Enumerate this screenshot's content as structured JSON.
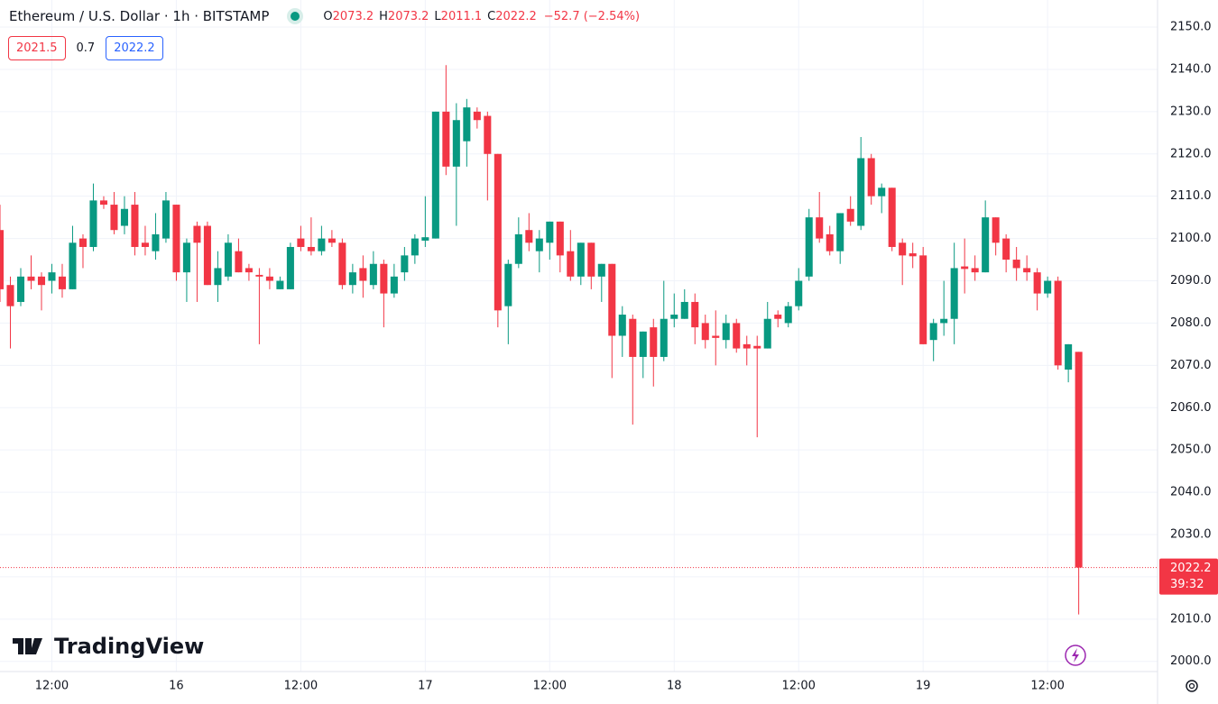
{
  "chart_data": {
    "type": "candlestick",
    "title": "Ethereum / U.S. Dollar · 1h · BITSTAMP",
    "header": {
      "o_label": "O",
      "open": 2073.2,
      "h_label": "H",
      "high": 2073.2,
      "l_label": "L",
      "low": 2011.1,
      "c_label": "C",
      "close": 2022.2,
      "change": "−52.7 (−2.54%)"
    },
    "bid": 2021.5,
    "spread": 0.7,
    "ask": 2022.2,
    "last_price": 2022.2,
    "countdown": "39:32",
    "watermark": "TradingView",
    "up_color": "#089981",
    "down_color": "#f23645",
    "grid": true,
    "x": [
      7,
      8,
      9,
      10,
      11,
      12,
      13,
      14,
      15,
      16,
      17,
      18,
      19,
      20,
      21,
      22,
      23,
      24,
      25,
      26,
      27,
      28,
      29,
      30,
      31,
      32,
      33,
      34,
      35,
      36,
      37,
      38,
      39,
      40,
      41,
      42,
      43,
      44,
      45,
      46,
      47,
      48,
      49,
      50,
      51,
      52,
      53,
      54,
      55,
      56,
      57,
      58,
      59,
      60,
      61,
      62,
      63,
      64,
      65,
      66,
      67,
      68,
      69,
      70,
      71,
      72,
      73,
      74,
      75,
      76,
      77,
      78,
      79,
      80,
      81,
      82,
      83,
      84,
      85,
      86,
      87,
      88,
      89,
      90,
      91,
      92,
      93,
      94,
      95,
      96,
      97,
      98,
      99,
      100,
      101,
      102,
      103,
      104,
      105,
      106,
      107,
      108,
      109,
      110,
      111
    ],
    "open": [
      2102,
      2089,
      2085,
      2091,
      2091,
      2090,
      2091,
      2088,
      2100,
      2098,
      2109,
      2108,
      2103,
      2108,
      2099,
      2097,
      2100,
      2108,
      2092,
      2103,
      2103,
      2089,
      2091,
      2097,
      2093,
      2091.4,
      2091,
      2088,
      2088,
      2100,
      2098,
      2097,
      2100,
      2099,
      2089,
      2093,
      2089,
      2094,
      2087,
      2092,
      2096,
      2099.5,
      2100,
      2130,
      2117,
      2123,
      2130,
      2129,
      2120,
      2084,
      2094,
      2102,
      2097,
      2099,
      2104,
      2097,
      2091,
      2099,
      2091,
      2094,
      2077,
      2081,
      2072,
      2079,
      2072,
      2081,
      2081,
      2085,
      2080,
      2077,
      2076,
      2080,
      2075,
      2074.6,
      2074,
      2082,
      2080,
      2084,
      2091,
      2105,
      2101,
      2097,
      2107,
      2103,
      2119,
      2110,
      2112,
      2099,
      2096.5,
      2096,
      2076,
      2080,
      2081,
      2093.4,
      2093,
      2092,
      2105,
      2100,
      2095,
      2093,
      2092,
      2087,
      2090,
      2069,
      2073.2
    ],
    "high": [
      2108,
      2091,
      2093,
      2096,
      2092,
      2094,
      2094,
      2103,
      2101,
      2113,
      2110,
      2111,
      2110,
      2111,
      2103,
      2106,
      2111,
      2108,
      2100,
      2104,
      2104,
      2097,
      2101,
      2100,
      2094,
      2093,
      2093,
      2091,
      2099,
      2103,
      2105,
      2103,
      2102,
      2100,
      2094,
      2096,
      2097,
      2095,
      2094,
      2098,
      2101,
      2110,
      2130,
      2141,
      2132,
      2133,
      2131,
      2130,
      2120,
      2095,
      2105,
      2106,
      2102,
      2104,
      2104,
      2102,
      2099,
      2099,
      2094,
      2094,
      2084,
      2082,
      2078,
      2081,
      2090,
      2087,
      2088,
      2087,
      2082,
      2083,
      2082,
      2081,
      2077,
      2077,
      2085,
      2083,
      2085,
      2093,
      2107,
      2111,
      2103,
      2106,
      2110,
      2124,
      2120,
      2113,
      2112,
      2100,
      2099,
      2098,
      2081,
      2090,
      2099,
      2100,
      2096,
      2109,
      2105,
      2101,
      2098,
      2096,
      2093,
      2091,
      2091,
      2075,
      2073.2
    ],
    "low": [
      2085,
      2074,
      2084,
      2088,
      2083,
      2087,
      2086,
      2088,
      2093,
      2097,
      2107,
      2101,
      2101,
      2096,
      2096,
      2095,
      2099,
      2090,
      2085,
      2085,
      2089,
      2085,
      2090,
      2092,
      2090,
      2075,
      2088,
      2088,
      2088,
      2097,
      2096,
      2096,
      2098,
      2088,
      2087,
      2086,
      2088,
      2079,
      2086,
      2090,
      2094,
      2098,
      2100,
      2115,
      2103,
      2117,
      2126,
      2109,
      2079,
      2075,
      2093,
      2097,
      2092,
      2095,
      2092,
      2090,
      2089,
      2088,
      2085,
      2067,
      2072,
      2056,
      2067,
      2065,
      2071,
      2079,
      2081,
      2075,
      2074,
      2070,
      2074,
      2073,
      2070,
      2053,
      2074,
      2079,
      2079,
      2083,
      2090,
      2099,
      2096,
      2094,
      2103,
      2102,
      2108,
      2106,
      2097,
      2089,
      2093,
      2075,
      2071,
      2077,
      2075,
      2087,
      2090,
      2092,
      2096,
      2092,
      2090,
      2090,
      2083,
      2086,
      2069,
      2066,
      2011.1
    ],
    "close": [
      2088,
      2084,
      2091,
      2090,
      2089,
      2092,
      2088,
      2099,
      2098,
      2109,
      2108,
      2102,
      2107,
      2098,
      2098,
      2101,
      2109,
      2092,
      2099,
      2099,
      2089,
      2093,
      2099,
      2092,
      2092,
      2091,
      2090,
      2090,
      2098,
      2098,
      2097,
      2100,
      2099,
      2089,
      2092,
      2090,
      2094,
      2087,
      2091,
      2096,
      2100,
      2100.3,
      2130,
      2117,
      2128,
      2131,
      2128,
      2120,
      2083,
      2094,
      2101,
      2099,
      2100,
      2104,
      2096,
      2091,
      2099,
      2091,
      2094,
      2077,
      2082,
      2072,
      2078,
      2072,
      2081,
      2082,
      2085,
      2079,
      2076,
      2076.5,
      2080,
      2074,
      2074,
      2074,
      2081,
      2081,
      2084,
      2090,
      2105,
      2100,
      2097,
      2106,
      2104,
      2119,
      2110,
      2112,
      2098,
      2096,
      2095.8,
      2075,
      2080,
      2081,
      2093,
      2092.8,
      2092,
      2105,
      2099,
      2095,
      2093,
      2092,
      2087,
      2090,
      2070,
      2075,
      2022.2
    ],
    "xlim": [
      7,
      118.6
    ],
    "xticks": [
      {
        "value": 12,
        "label": "12:00"
      },
      {
        "value": 24,
        "label": "16"
      },
      {
        "value": 36,
        "label": "12:00"
      },
      {
        "value": 48,
        "label": "17"
      },
      {
        "value": 60,
        "label": "12:00"
      },
      {
        "value": 72,
        "label": "18"
      },
      {
        "value": 84,
        "label": "12:00"
      },
      {
        "value": 96,
        "label": "19"
      },
      {
        "value": 108,
        "label": "12:00"
      }
    ],
    "ylim": [
      1997.6,
      2156.4
    ],
    "yticks": [
      {
        "value": 2000,
        "label": "2000.0"
      },
      {
        "value": 2010,
        "label": "2010.0"
      },
      {
        "value": 2020,
        "label": "2020.0"
      },
      {
        "value": 2030,
        "label": "2030.0"
      },
      {
        "value": 2040,
        "label": "2040.0"
      },
      {
        "value": 2050,
        "label": "2050.0"
      },
      {
        "value": 2060,
        "label": "2060.0"
      },
      {
        "value": 2070,
        "label": "2070.0"
      },
      {
        "value": 2080,
        "label": "2080.0"
      },
      {
        "value": 2090,
        "label": "2090.0"
      },
      {
        "value": 2100,
        "label": "2100.0"
      },
      {
        "value": 2110,
        "label": "2110.0"
      },
      {
        "value": 2120,
        "label": "2120.0"
      },
      {
        "value": 2130,
        "label": "2130.0"
      },
      {
        "value": 2140,
        "label": "2140.0"
      },
      {
        "value": 2150,
        "label": "2150.0"
      }
    ]
  }
}
